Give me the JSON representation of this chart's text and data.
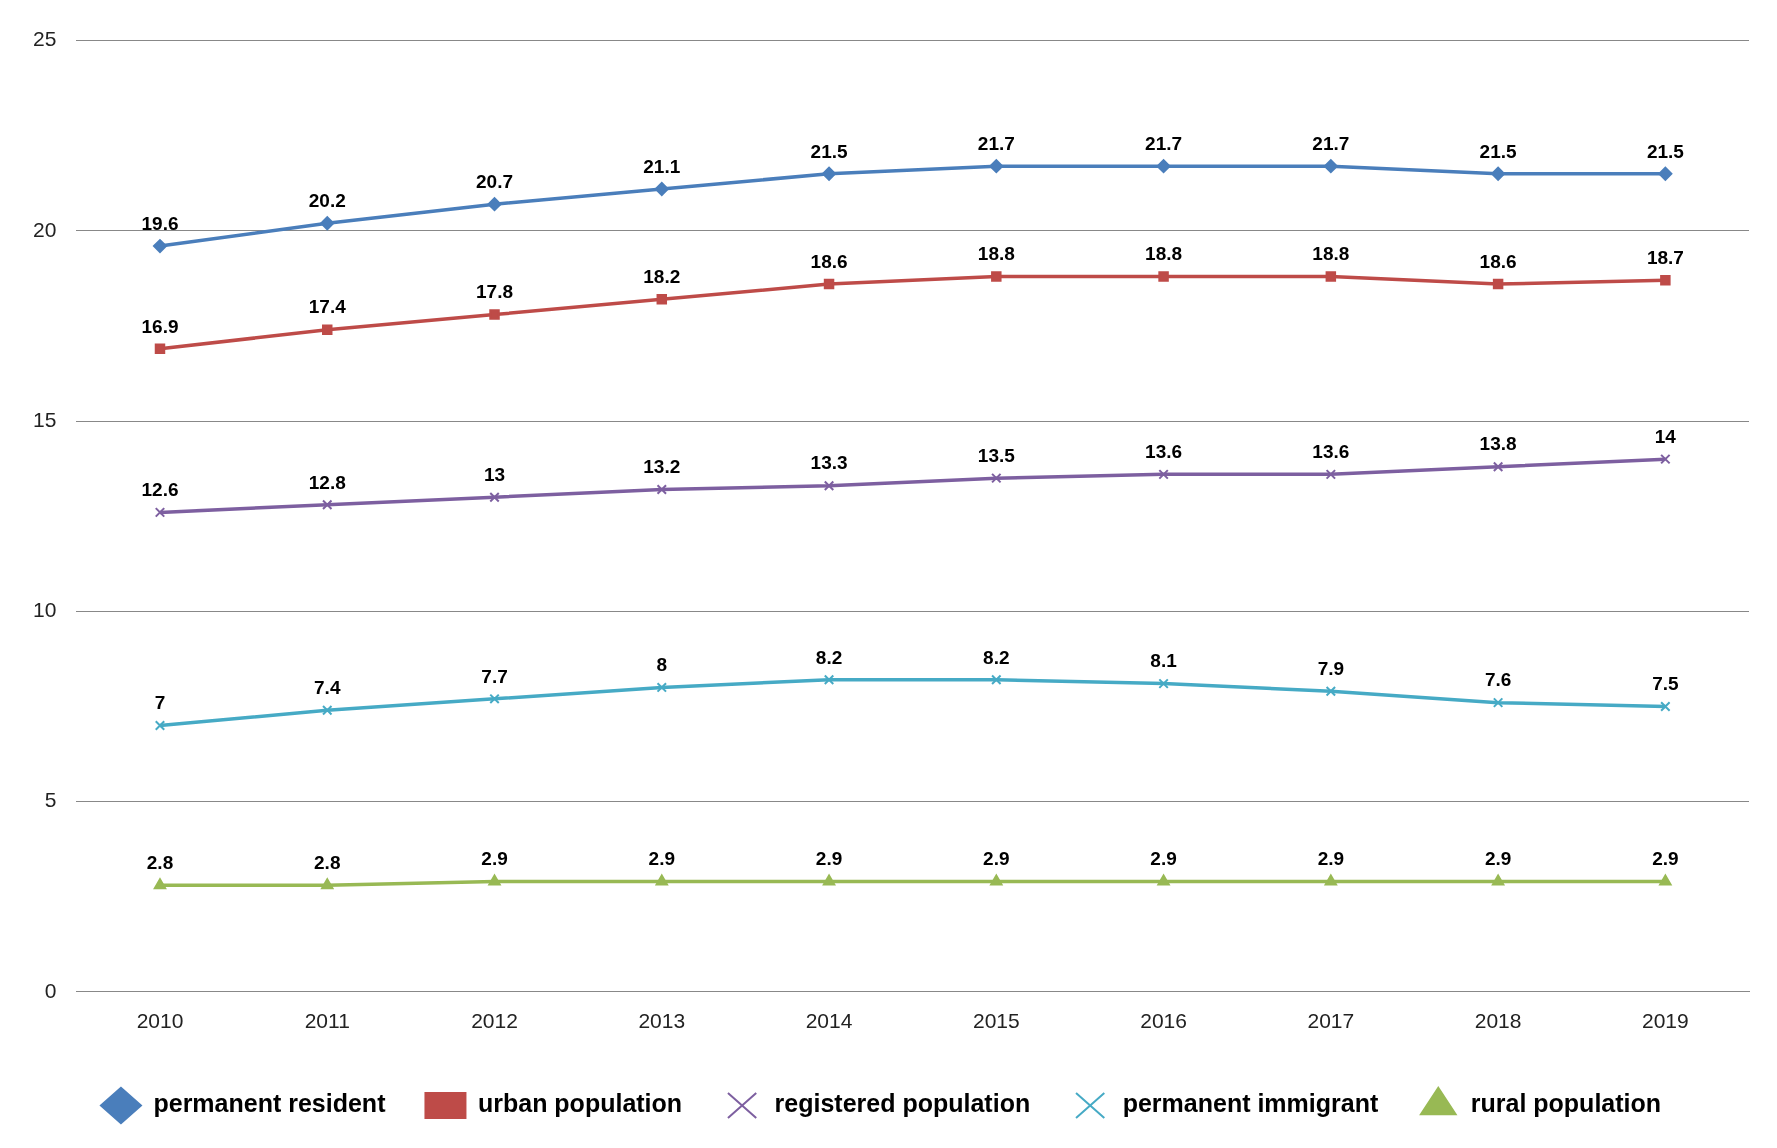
{
  "chart_data": {
    "type": "line",
    "categories": [
      "2010",
      "2011",
      "2012",
      "2013",
      "2014",
      "2015",
      "2016",
      "2017",
      "2018",
      "2019"
    ],
    "ylim": [
      0,
      25
    ],
    "yticks": [
      0,
      5,
      10,
      15,
      20,
      25
    ],
    "grid": "y",
    "legend": "bottom",
    "data_labels": true,
    "series": [
      {
        "name": "permanent resident",
        "color": "#4a7ebb",
        "marker": "diamond",
        "values": [
          19.6,
          20.2,
          20.7,
          21.1,
          21.5,
          21.7,
          21.7,
          21.7,
          21.5,
          21.5
        ]
      },
      {
        "name": "urban population",
        "color": "#be4b48",
        "marker": "square",
        "values": [
          16.9,
          17.4,
          17.8,
          18.2,
          18.6,
          18.8,
          18.8,
          18.8,
          18.6,
          18.7
        ]
      },
      {
        "name": "registered population",
        "color": "#7d5fa0",
        "marker": "cross",
        "values": [
          12.6,
          12.8,
          13,
          13.2,
          13.3,
          13.5,
          13.6,
          13.6,
          13.8,
          14
        ]
      },
      {
        "name": "permanent immigrant",
        "color": "#46aac5",
        "marker": "cross",
        "values": [
          7,
          7.4,
          7.7,
          8,
          8.2,
          8.2,
          8.1,
          7.9,
          7.6,
          7.5
        ]
      },
      {
        "name": "rural population",
        "color": "#98b954",
        "marker": "triangle",
        "values": [
          2.8,
          2.8,
          2.9,
          2.9,
          2.9,
          2.9,
          2.9,
          2.9,
          2.9,
          2.9
        ]
      }
    ]
  }
}
